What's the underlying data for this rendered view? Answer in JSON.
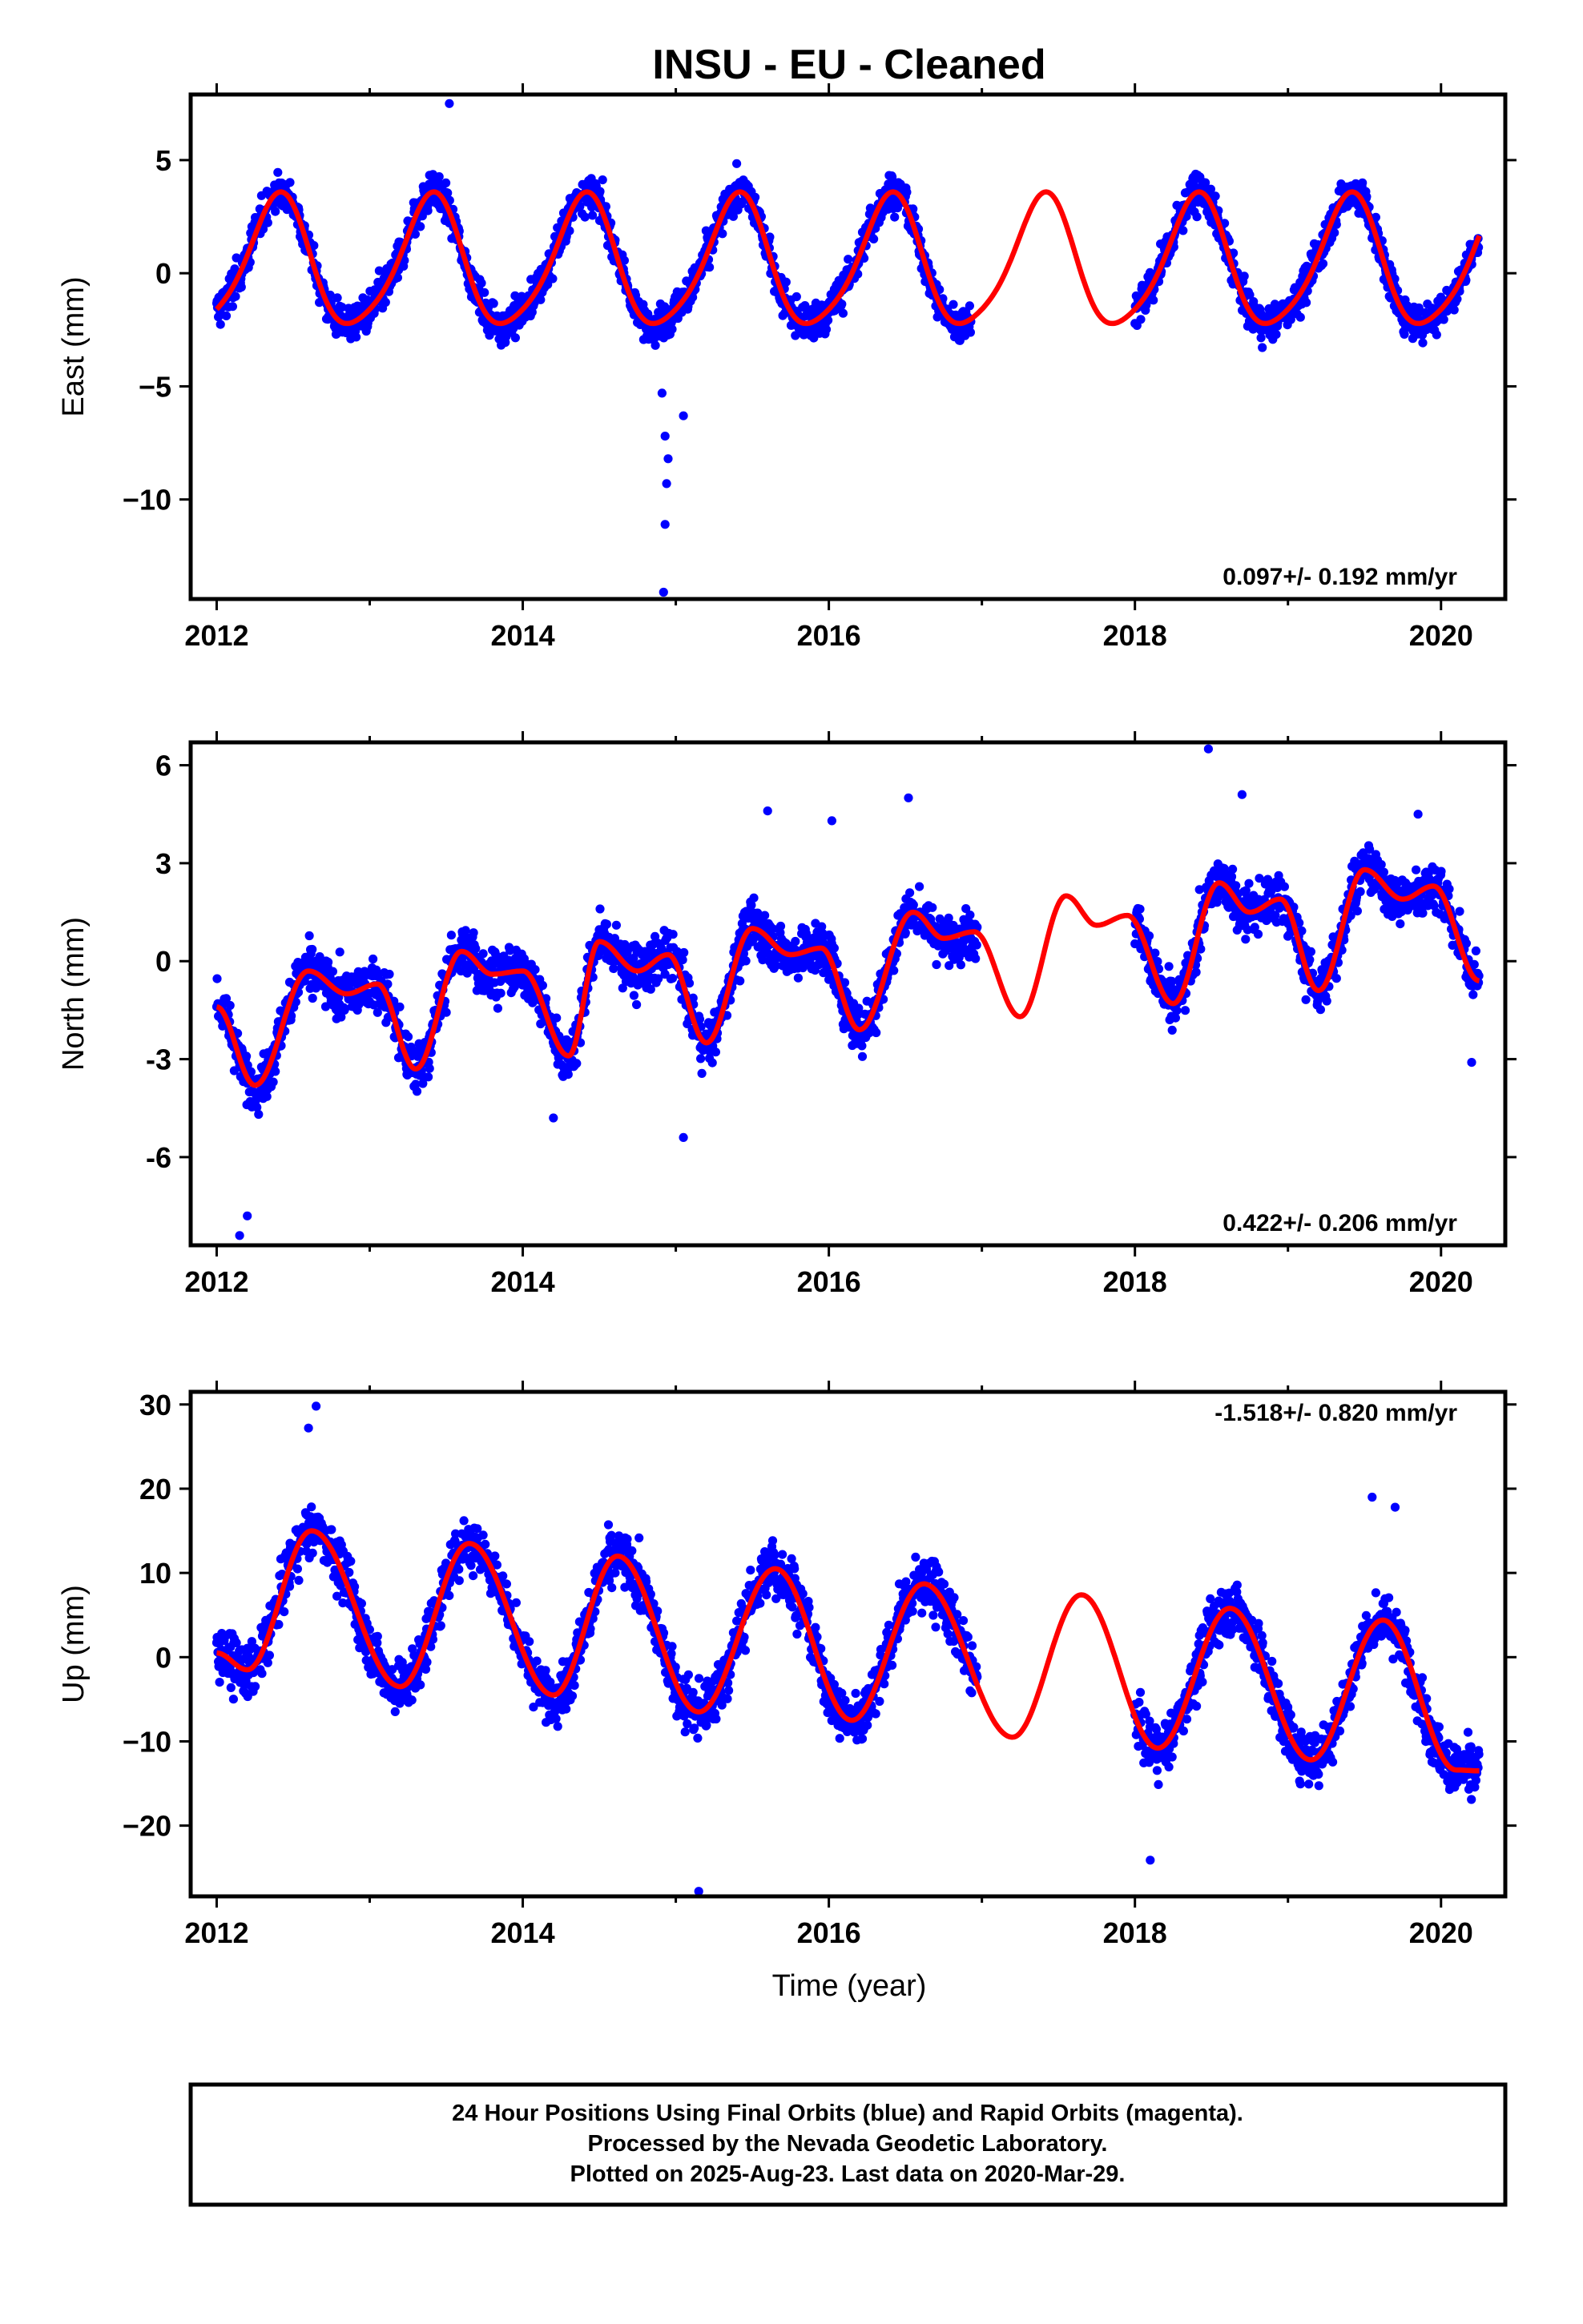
{
  "title": "INSU  - EU - Cleaned",
  "xlabel": "Time (year)",
  "x_tick_labels": [
    "2012",
    "2014",
    "2016",
    "2018",
    "2020"
  ],
  "colors": {
    "data": "#0000ff",
    "model": "#ff0000",
    "frame": "#000000"
  },
  "footer": {
    "line1": "24 Hour Positions Using Final Orbits (blue) and Rapid Orbits (magenta).",
    "line2": "Processed by the Nevada Geodetic Laboratory.",
    "line3": "Plotted on 2025-Aug-23. Last data on 2020-Mar-29."
  },
  "chart_data": [
    {
      "type": "scatter",
      "ylabel": "East (mm)",
      "rate": "0.097+/- 0.192 mm/yr",
      "xlim": [
        2011.83,
        2020.42
      ],
      "ylim": [
        -14.4,
        7.9
      ],
      "y_ticks": [
        5,
        0,
        -5,
        -10
      ],
      "y_tick_labels": [
        "5",
        "0",
        "−5",
        "−10"
      ],
      "grid": false,
      "series": [
        {
          "kind": "points",
          "color": "#0000ff",
          "segments": [
            [
              2012.0,
              2016.93
            ],
            [
              2018.0,
              2020.25
            ]
          ],
          "noise": 1.05,
          "trend": 0.0,
          "outliers": [
            [
              2014.92,
              -14.1
            ],
            [
              2014.93,
              -11.1
            ],
            [
              2014.94,
              -9.3
            ],
            [
              2014.95,
              -8.2
            ],
            [
              2014.93,
              -7.2
            ],
            [
              2015.05,
              -6.3
            ],
            [
              2014.91,
              -5.3
            ],
            [
              2013.52,
              7.5
            ]
          ]
        },
        {
          "kind": "model",
          "color": "#ff0000",
          "mean": 0.35,
          "annual_amp": 2.85,
          "annual_peak": 0.4,
          "semi_amp": 0.45,
          "semi_peak": 0.45,
          "trend": 0.0
        }
      ]
    },
    {
      "type": "scatter",
      "ylabel": "North (mm)",
      "rate": "0.422+/- 0.206 mm/yr",
      "xlim": [
        2011.83,
        2020.42
      ],
      "ylim": [
        -8.7,
        6.7
      ],
      "y_ticks": [
        6,
        3,
        0,
        -3,
        -6
      ],
      "y_tick_labels": [
        "6",
        "3",
        "0",
        "-3",
        "-6"
      ],
      "grid": false,
      "series": [
        {
          "kind": "points",
          "color": "#0000ff",
          "segments": [
            [
              2012.0,
              2016.97
            ],
            [
              2018.0,
              2020.25
            ]
          ],
          "noise": 1.0,
          "trend": 0.0,
          "outliers": [
            [
              2012.15,
              -8.4
            ],
            [
              2012.2,
              -7.8
            ],
            [
              2015.05,
              -5.4
            ],
            [
              2014.2,
              -4.8
            ],
            [
              2018.48,
              6.5
            ],
            [
              2016.52,
              5.0
            ],
            [
              2018.7,
              5.1
            ],
            [
              2015.6,
              4.6
            ],
            [
              2016.02,
              4.3
            ],
            [
              2019.85,
              4.5
            ],
            [
              2020.2,
              -3.1
            ]
          ]
        },
        {
          "kind": "model",
          "color": "#ff0000",
          "knots": [
            [
              2012.0,
              -1.4
            ],
            [
              2012.25,
              -3.8
            ],
            [
              2012.6,
              -0.3
            ],
            [
              2012.85,
              -1.0
            ],
            [
              2013.05,
              -0.7
            ],
            [
              2013.3,
              -3.3
            ],
            [
              2013.6,
              0.3
            ],
            [
              2013.8,
              -0.4
            ],
            [
              2014.0,
              -0.3
            ],
            [
              2014.3,
              -2.9
            ],
            [
              2014.5,
              0.6
            ],
            [
              2014.75,
              -0.3
            ],
            [
              2014.95,
              0.2
            ],
            [
              2015.2,
              -2.5
            ],
            [
              2015.5,
              1.0
            ],
            [
              2015.75,
              0.2
            ],
            [
              2015.95,
              0.4
            ],
            [
              2016.2,
              -2.1
            ],
            [
              2016.55,
              1.5
            ],
            [
              2016.75,
              0.7
            ],
            [
              2016.95,
              0.9
            ],
            [
              2017.25,
              -1.7
            ],
            [
              2017.55,
              2.0
            ],
            [
              2017.75,
              1.1
            ],
            [
              2017.95,
              1.4
            ],
            [
              2018.25,
              -1.3
            ],
            [
              2018.55,
              2.4
            ],
            [
              2018.75,
              1.5
            ],
            [
              2018.95,
              1.9
            ],
            [
              2019.2,
              -0.9
            ],
            [
              2019.5,
              2.8
            ],
            [
              2019.75,
              1.9
            ],
            [
              2019.95,
              2.3
            ],
            [
              2020.25,
              -0.6
            ]
          ]
        }
      ]
    },
    {
      "type": "scatter",
      "ylabel": "Up (mm)",
      "rate": "-1.518+/- 0.820 mm/yr",
      "xlim": [
        2011.83,
        2020.42
      ],
      "ylim": [
        -28.4,
        31.5
      ],
      "y_ticks": [
        30,
        20,
        10,
        0,
        -10,
        -20
      ],
      "y_tick_labels": [
        "30",
        "20",
        "10",
        "0",
        "−10",
        "−20"
      ],
      "grid": false,
      "series": [
        {
          "kind": "points",
          "color": "#0000ff",
          "segments": [
            [
              2012.0,
              2016.97
            ],
            [
              2018.0,
              2020.25
            ]
          ],
          "noise": 4.2,
          "trend": 0.0,
          "outliers": [
            [
              2012.65,
              29.8
            ],
            [
              2012.6,
              27.2
            ],
            [
              2015.15,
              -27.8
            ],
            [
              2018.1,
              -24.1
            ],
            [
              2019.55,
              19.0
            ],
            [
              2019.7,
              17.8
            ]
          ]
        },
        {
          "kind": "model",
          "color": "#ff0000",
          "knots": [
            [
              2012.0,
              0.5
            ],
            [
              2012.2,
              -1.5
            ],
            [
              2012.62,
              15.0
            ],
            [
              2013.2,
              -3.5
            ],
            [
              2013.65,
              13.5
            ],
            [
              2014.2,
              -4.5
            ],
            [
              2014.62,
              12.0
            ],
            [
              2015.15,
              -6.5
            ],
            [
              2015.65,
              10.5
            ],
            [
              2016.15,
              -7.5
            ],
            [
              2016.62,
              8.7
            ],
            [
              2017.2,
              -9.5
            ],
            [
              2017.65,
              7.4
            ],
            [
              2018.15,
              -10.8
            ],
            [
              2018.62,
              5.8
            ],
            [
              2019.15,
              -12.2
            ],
            [
              2019.62,
              4.4
            ],
            [
              2020.1,
              -13.4
            ],
            [
              2020.25,
              -13.5
            ]
          ]
        }
      ]
    }
  ]
}
